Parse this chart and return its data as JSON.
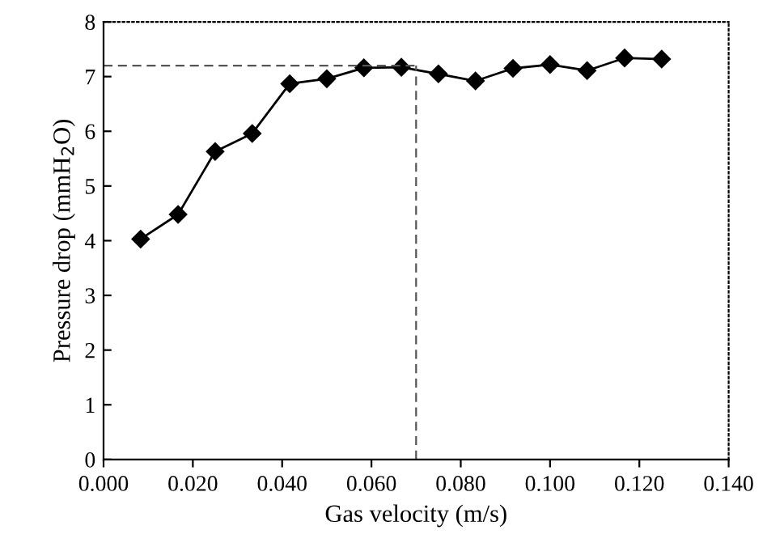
{
  "chart_data": {
    "type": "line",
    "xlabel": "Gas velocity (m/s)",
    "ylabel": "Pressure drop (mmH$_{2}$O)",
    "x": [
      0.0083,
      0.0167,
      0.025,
      0.0333,
      0.0417,
      0.05,
      0.0583,
      0.0667,
      0.075,
      0.0833,
      0.0917,
      0.1,
      0.1083,
      0.1167,
      0.125
    ],
    "series": [
      {
        "color": "#000000",
        "values": [
          4.03,
          4.48,
          5.63,
          5.96,
          6.87,
          6.96,
          7.16,
          7.17,
          7.05,
          6.92,
          7.15,
          7.22,
          7.11,
          7.34,
          7.32
        ]
      }
    ],
    "marker": "diamond",
    "line_style": "solid",
    "xlim": [
      0,
      0.14
    ],
    "xticks": [
      {
        "value": 0,
        "label": "0.000"
      },
      {
        "value": 0.02,
        "label": "0.020"
      },
      {
        "value": 0.04,
        "label": "0.040"
      },
      {
        "value": 0.06,
        "label": "0.060"
      },
      {
        "value": 0.08,
        "label": "0.080"
      },
      {
        "value": 0.1,
        "label": "0.100"
      },
      {
        "value": 0.12,
        "label": "0.120"
      },
      {
        "value": 0.14,
        "label": "0.140"
      }
    ],
    "ylim": [
      0,
      8
    ],
    "yticks": [
      0,
      1,
      2,
      3,
      4,
      5,
      6,
      7,
      8
    ],
    "ref_lines": [
      {
        "axis": "y",
        "value": 7.2,
        "line_style": "dashed",
        "color": "#555555"
      },
      {
        "axis": "x",
        "value": 0.07,
        "line_style": "dashed",
        "color": "#555555"
      }
    ],
    "grid": false,
    "legend": false
  }
}
